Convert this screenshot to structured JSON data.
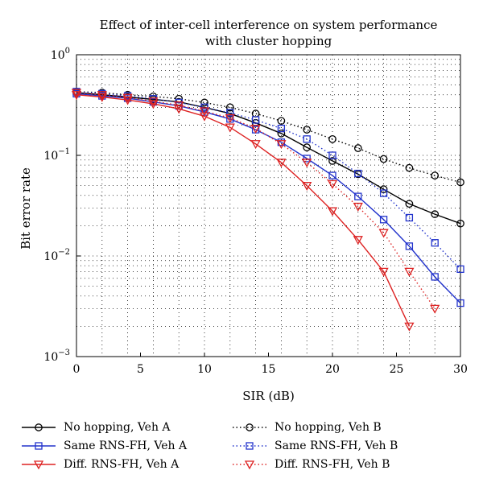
{
  "chart_data": {
    "type": "line",
    "title": [
      "Effect of inter-cell interference on system performance",
      "with cluster hopping"
    ],
    "xlabel": "SIR (dB)",
    "ylabel": "Bit error rate",
    "xlim": [
      0,
      30
    ],
    "ylim": [
      0.001,
      1
    ],
    "yscale": "log",
    "grid": true,
    "x_ticks": [
      "0",
      "5",
      "10",
      "15",
      "20",
      "25",
      "30"
    ],
    "y_ticks": [
      {
        "base": "10",
        "exp": "0"
      },
      {
        "base": "10",
        "exp": "−1"
      },
      {
        "base": "10",
        "exp": "−2"
      },
      {
        "base": "10",
        "exp": "−3"
      }
    ],
    "legend_position": "below",
    "series": [
      {
        "name": "No hopping, Veh A",
        "color": "#000000",
        "line": "solid",
        "marker": "circle",
        "x": [
          0,
          2,
          4,
          6,
          8,
          10,
          12,
          14,
          16,
          18,
          20,
          22,
          24,
          26,
          28,
          30
        ],
        "y": [
          0.42,
          0.4,
          0.38,
          0.36,
          0.34,
          0.3,
          0.26,
          0.21,
          0.165,
          0.12,
          0.088,
          0.065,
          0.046,
          0.033,
          0.026,
          0.021
        ]
      },
      {
        "name": "No hopping, Veh B",
        "color": "#000000",
        "line": "dotted",
        "marker": "circle",
        "x": [
          0,
          2,
          4,
          6,
          8,
          10,
          12,
          14,
          16,
          18,
          20,
          22,
          24,
          26,
          28,
          30
        ],
        "y": [
          0.43,
          0.42,
          0.4,
          0.385,
          0.365,
          0.335,
          0.3,
          0.26,
          0.22,
          0.18,
          0.145,
          0.118,
          0.092,
          0.075,
          0.063,
          0.054
        ]
      },
      {
        "name": "Same RNS-FH, Veh A",
        "color": "#2233cc",
        "line": "solid",
        "marker": "square",
        "x": [
          0,
          2,
          4,
          6,
          8,
          10,
          12,
          14,
          16,
          18,
          20,
          22,
          24,
          26,
          28,
          30
        ],
        "y": [
          0.41,
          0.39,
          0.37,
          0.34,
          0.31,
          0.27,
          0.23,
          0.18,
          0.135,
          0.093,
          0.063,
          0.039,
          0.023,
          0.0125,
          0.0062,
          0.0034
        ]
      },
      {
        "name": "Same RNS-FH, Veh B",
        "color": "#2233cc",
        "line": "dotted",
        "marker": "square",
        "x": [
          0,
          2,
          4,
          6,
          8,
          10,
          12,
          14,
          16,
          18,
          20,
          22,
          24,
          26,
          28,
          30
        ],
        "y": [
          0.43,
          0.41,
          0.39,
          0.365,
          0.335,
          0.3,
          0.265,
          0.225,
          0.185,
          0.145,
          0.1,
          0.066,
          0.042,
          0.024,
          0.0135,
          0.0074
        ]
      },
      {
        "name": "Diff. RNS-FH, Veh A",
        "color": "#dd2222",
        "line": "solid",
        "marker": "triangle-down",
        "x": [
          0,
          2,
          4,
          6,
          8,
          10,
          12,
          14,
          16,
          18,
          20,
          22,
          24,
          26
        ],
        "y": [
          0.4,
          0.38,
          0.355,
          0.325,
          0.29,
          0.245,
          0.19,
          0.13,
          0.085,
          0.05,
          0.028,
          0.0145,
          0.007,
          0.002
        ]
      },
      {
        "name": "Diff. RNS-FH, Veh B",
        "color": "#dd2222",
        "line": "dotted",
        "marker": "triangle-down",
        "x": [
          0,
          2,
          4,
          6,
          8,
          10,
          12,
          14,
          16,
          18,
          20,
          22,
          24,
          26,
          28
        ],
        "y": [
          0.42,
          0.4,
          0.375,
          0.345,
          0.315,
          0.275,
          0.235,
          0.185,
          0.13,
          0.085,
          0.052,
          0.031,
          0.017,
          0.007,
          0.003
        ]
      }
    ]
  }
}
